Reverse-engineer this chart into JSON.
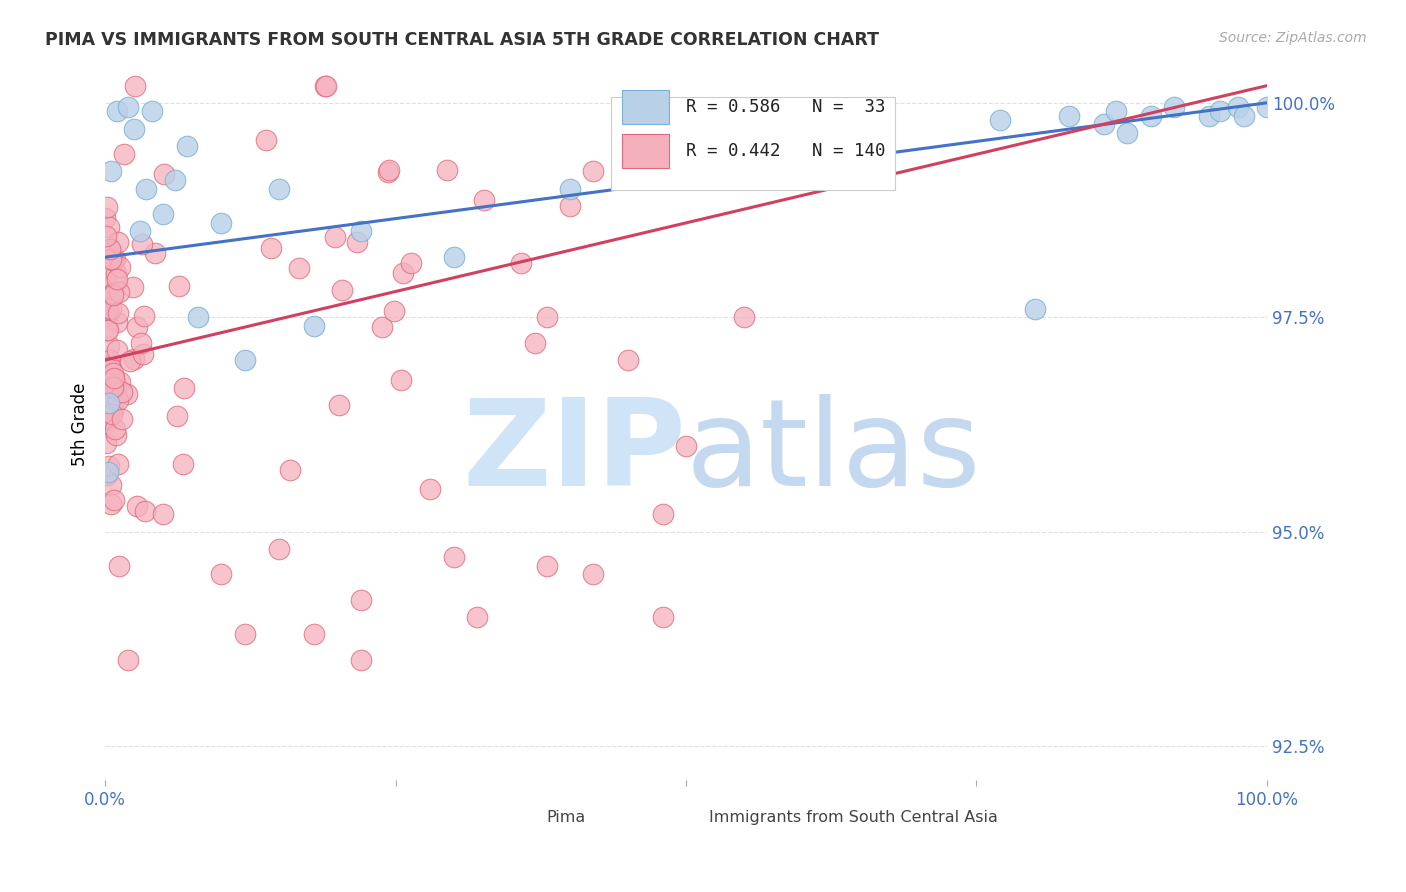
{
  "title": "PIMA VS IMMIGRANTS FROM SOUTH CENTRAL ASIA 5TH GRADE CORRELATION CHART",
  "source": "Source: ZipAtlas.com",
  "ylabel": "5th Grade",
  "xmin": 0.0,
  "xmax": 1.0,
  "ymin": 0.921,
  "ymax": 1.004,
  "yticks": [
    0.925,
    0.95,
    0.975,
    1.0
  ],
  "ytick_labels": [
    "92.5%",
    "95.0%",
    "97.5%",
    "100.0%"
  ],
  "blue_color": "#b8d0e8",
  "blue_edge": "#7bafd4",
  "pink_color": "#f5b0be",
  "pink_edge": "#e06878",
  "trend_blue": "#4472c4",
  "trend_pink": "#d04060",
  "blue_r": 0.586,
  "blue_n": 33,
  "pink_r": 0.442,
  "pink_n": 140,
  "blue_intercept": 0.982,
  "blue_slope": 0.018,
  "pink_intercept": 0.97,
  "pink_slope": 0.032,
  "text_color_blue": "#4472c4",
  "grid_color": "#e0e0e0",
  "watermark_zip_color": "#d0e4f7",
  "watermark_atlas_color": "#c4d8f0"
}
